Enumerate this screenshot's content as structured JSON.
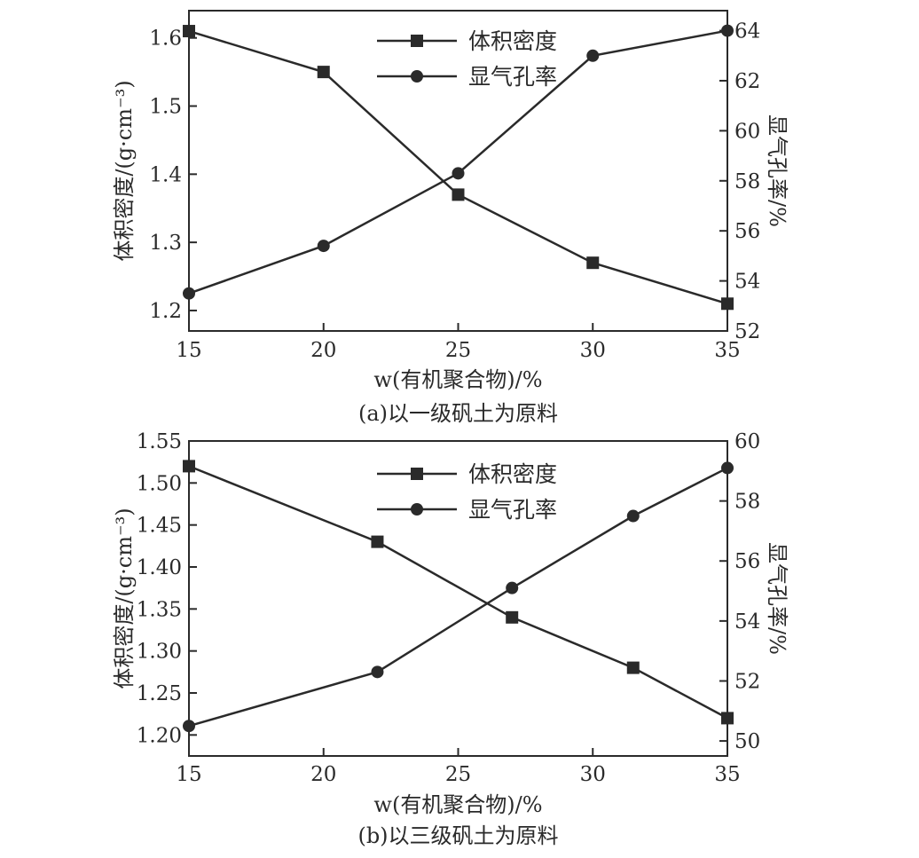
{
  "chart_data": [
    {
      "type": "line",
      "caption": "(a)以一级矾土为原料",
      "xlabel": "w(有机聚合物)/%",
      "ylabel_left": "体积密度/(g·cm⁻³)",
      "ylabel_right": "显气孔率/%",
      "xlim": [
        15,
        35
      ],
      "xticks": [
        15,
        20,
        25,
        30,
        35
      ],
      "ylim_left": [
        1.17,
        1.64
      ],
      "yticks_left": [
        1.2,
        1.3,
        1.4,
        1.5,
        1.6
      ],
      "ylim_right": [
        52,
        64.8
      ],
      "yticks_right": [
        52,
        54,
        56,
        58,
        60,
        62,
        64
      ],
      "legend_position": "top-center",
      "series": [
        {
          "name": "体积密度",
          "axis": "left",
          "marker": "square",
          "x": [
            15,
            20,
            25,
            30,
            35
          ],
          "values": [
            1.61,
            1.55,
            1.37,
            1.27,
            1.21
          ]
        },
        {
          "name": "显气孔率",
          "axis": "right",
          "marker": "circle",
          "x": [
            15,
            20,
            25,
            30,
            35
          ],
          "values": [
            53.5,
            55.4,
            58.3,
            63.0,
            64.0
          ]
        }
      ]
    },
    {
      "type": "line",
      "caption": "(b)以三级矾土为原料",
      "xlabel": "w(有机聚合物)/%",
      "ylabel_left": "体积密度/(g·cm⁻³)",
      "ylabel_right": "显气孔率/%",
      "xlim": [
        15,
        35
      ],
      "xticks": [
        15,
        20,
        25,
        30,
        35
      ],
      "ylim_left": [
        1.175,
        1.55
      ],
      "yticks_left": [
        1.2,
        1.25,
        1.3,
        1.35,
        1.4,
        1.45,
        1.5,
        1.55
      ],
      "ylim_right": [
        49.5,
        60
      ],
      "yticks_right": [
        50,
        52,
        54,
        56,
        58,
        60
      ],
      "legend_position": "top-center",
      "series": [
        {
          "name": "体积密度",
          "axis": "left",
          "marker": "square",
          "x": [
            15,
            22,
            27,
            31.5,
            35
          ],
          "values": [
            1.52,
            1.43,
            1.34,
            1.28,
            1.22
          ]
        },
        {
          "name": "显气孔率",
          "axis": "right",
          "marker": "circle",
          "x": [
            15,
            22,
            27,
            31.5,
            35
          ],
          "values": [
            50.5,
            52.3,
            55.1,
            57.5,
            59.1
          ]
        }
      ]
    }
  ]
}
